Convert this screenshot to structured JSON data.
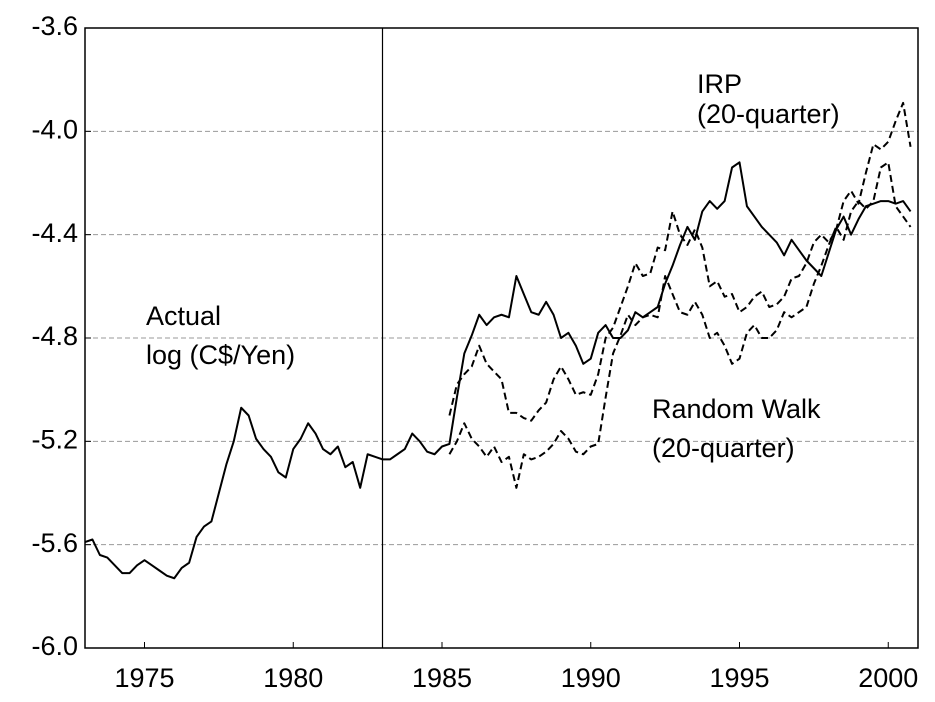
{
  "chart_data": {
    "type": "line",
    "x": [
      1973,
      1973.25,
      1973.5,
      1973.75,
      1974,
      1974.25,
      1974.5,
      1974.75,
      1975,
      1975.25,
      1975.5,
      1975.75,
      1976,
      1976.25,
      1976.5,
      1976.75,
      1977,
      1977.25,
      1977.5,
      1977.75,
      1978,
      1978.25,
      1978.5,
      1978.75,
      1979,
      1979.25,
      1979.5,
      1979.75,
      1980,
      1980.25,
      1980.5,
      1980.75,
      1981,
      1981.25,
      1981.5,
      1981.75,
      1982,
      1982.25,
      1982.5,
      1982.75,
      1983,
      1983.25,
      1983.5,
      1983.75,
      1984,
      1984.25,
      1984.5,
      1984.75,
      1985,
      1985.25,
      1985.5,
      1985.75,
      1986,
      1986.25,
      1986.5,
      1986.75,
      1987,
      1987.25,
      1987.5,
      1987.75,
      1988,
      1988.25,
      1988.5,
      1988.75,
      1989,
      1989.25,
      1989.5,
      1989.75,
      1990,
      1990.25,
      1990.5,
      1990.75,
      1991,
      1991.25,
      1991.5,
      1991.75,
      1992,
      1992.25,
      1992.5,
      1992.75,
      1993,
      1993.25,
      1993.5,
      1993.75,
      1994,
      1994.25,
      1994.5,
      1994.75,
      1995,
      1995.25,
      1995.5,
      1995.75,
      1996,
      1996.25,
      1996.5,
      1996.75,
      1997,
      1997.25,
      1997.5,
      1997.75,
      1998,
      1998.25,
      1998.5,
      1998.75,
      1999,
      1999.25,
      1999.5,
      1999.75,
      2000,
      2000.25,
      2000.5,
      2000.75
    ],
    "series": [
      {
        "color": "#000000",
        "linestyle": "solid",
        "values": [
          -5.59,
          -5.58,
          -5.64,
          -5.65,
          -5.68,
          -5.71,
          -5.71,
          -5.68,
          -5.66,
          -5.68,
          -5.7,
          -5.72,
          -5.73,
          -5.69,
          -5.67,
          -5.57,
          -5.53,
          -5.51,
          -5.4,
          -5.29,
          -5.2,
          -5.07,
          -5.1,
          -5.19,
          -5.23,
          -5.26,
          -5.32,
          -5.34,
          -5.23,
          -5.19,
          -5.13,
          -5.17,
          -5.23,
          -5.25,
          -5.22,
          -5.3,
          -5.28,
          -5.38,
          -5.25,
          -5.26,
          -5.27,
          -5.27,
          -5.25,
          -5.23,
          -5.17,
          -5.2,
          -5.24,
          -5.25,
          -5.22,
          -5.21,
          -5.03,
          -4.86,
          -4.79,
          -4.71,
          -4.75,
          -4.72,
          -4.71,
          -4.72,
          -4.56,
          -4.63,
          -4.7,
          -4.71,
          -4.66,
          -4.71,
          -4.8,
          -4.78,
          -4.83,
          -4.9,
          -4.88,
          -4.78,
          -4.75,
          -4.8,
          -4.8,
          -4.77,
          -4.7,
          -4.72,
          -4.7,
          -4.68,
          -4.59,
          -4.52,
          -4.44,
          -4.37,
          -4.42,
          -4.31,
          -4.27,
          -4.3,
          -4.27,
          -4.14,
          -4.12,
          -4.29,
          -4.33,
          -4.37,
          -4.4,
          -4.43,
          -4.48,
          -4.42,
          -4.46,
          -4.5,
          -4.53,
          -4.56,
          -4.47,
          -4.38,
          -4.33,
          -4.4,
          -4.34,
          -4.29,
          -4.28,
          -4.27,
          -4.27,
          -4.28,
          -4.27,
          -4.31
        ]
      },
      {
        "color": "#000000",
        "linestyle": "dashed",
        "values": [
          null,
          null,
          null,
          null,
          null,
          null,
          null,
          null,
          null,
          null,
          null,
          null,
          null,
          null,
          null,
          null,
          null,
          null,
          null,
          null,
          null,
          null,
          null,
          null,
          null,
          null,
          null,
          null,
          null,
          null,
          null,
          null,
          null,
          null,
          null,
          null,
          null,
          null,
          null,
          null,
          null,
          null,
          null,
          null,
          null,
          null,
          null,
          null,
          null,
          -5.1,
          -4.98,
          -4.94,
          -4.91,
          -4.83,
          -4.9,
          -4.93,
          -4.96,
          -5.09,
          -5.09,
          -5.11,
          -5.12,
          -5.08,
          -5.05,
          -4.96,
          -4.91,
          -4.96,
          -5.02,
          -5.01,
          -5.02,
          -4.94,
          -4.8,
          -4.76,
          -4.68,
          -4.6,
          -4.51,
          -4.56,
          -4.55,
          -4.45,
          -4.46,
          -4.31,
          -4.4,
          -4.44,
          -4.38,
          -4.45,
          -4.6,
          -4.58,
          -4.64,
          -4.63,
          -4.7,
          -4.68,
          -4.64,
          -4.62,
          -4.68,
          -4.67,
          -4.64,
          -4.57,
          -4.56,
          -4.51,
          -4.43,
          -4.4,
          -4.43,
          -4.38,
          -4.27,
          -4.23,
          -4.28,
          -4.16,
          -4.05,
          -4.07,
          -4.04,
          -3.96,
          -3.89,
          -4.06
        ]
      },
      {
        "color": "#000000",
        "linestyle": "dashed",
        "values": [
          null,
          null,
          null,
          null,
          null,
          null,
          null,
          null,
          null,
          null,
          null,
          null,
          null,
          null,
          null,
          null,
          null,
          null,
          null,
          null,
          null,
          null,
          null,
          null,
          null,
          null,
          null,
          null,
          null,
          null,
          null,
          null,
          null,
          null,
          null,
          null,
          null,
          null,
          null,
          null,
          null,
          null,
          null,
          null,
          null,
          null,
          null,
          null,
          null,
          -5.25,
          -5.2,
          -5.13,
          -5.19,
          -5.22,
          -5.26,
          -5.22,
          -5.28,
          -5.26,
          -5.38,
          -5.25,
          -5.27,
          -5.26,
          -5.24,
          -5.21,
          -5.16,
          -5.19,
          -5.24,
          -5.25,
          -5.22,
          -5.21,
          -5.03,
          -4.86,
          -4.79,
          -4.71,
          -4.75,
          -4.72,
          -4.71,
          -4.72,
          -4.56,
          -4.63,
          -4.7,
          -4.71,
          -4.66,
          -4.71,
          -4.8,
          -4.78,
          -4.83,
          -4.9,
          -4.88,
          -4.78,
          -4.75,
          -4.8,
          -4.8,
          -4.77,
          -4.7,
          -4.72,
          -4.7,
          -4.68,
          -4.59,
          -4.52,
          -4.44,
          -4.37,
          -4.42,
          -4.31,
          -4.27,
          -4.3,
          -4.27,
          -4.14,
          -4.12,
          -4.29,
          -4.33,
          -4.37
        ]
      }
    ],
    "xlim": [
      1973,
      2001
    ],
    "xticks": [
      1975,
      1980,
      1985,
      1990,
      1995,
      2000
    ],
    "ylim": [
      -6.0,
      -3.6
    ],
    "yticks": [
      {
        "value": -6.0,
        "label": "-6.0"
      },
      -5.6,
      -5.2,
      -4.8,
      -4.4,
      {
        "value": -4.0,
        "label": "-4.0"
      },
      -3.6
    ],
    "grid": true,
    "vline": 1983,
    "annotations": [
      {
        "lines": [
          "IRP",
          "(20-quarter)"
        ]
      },
      {
        "lines": [
          "Actual",
          "log (C$/Yen)"
        ]
      },
      {
        "lines": [
          "Random Walk",
          "(20-quarter)"
        ]
      }
    ]
  }
}
